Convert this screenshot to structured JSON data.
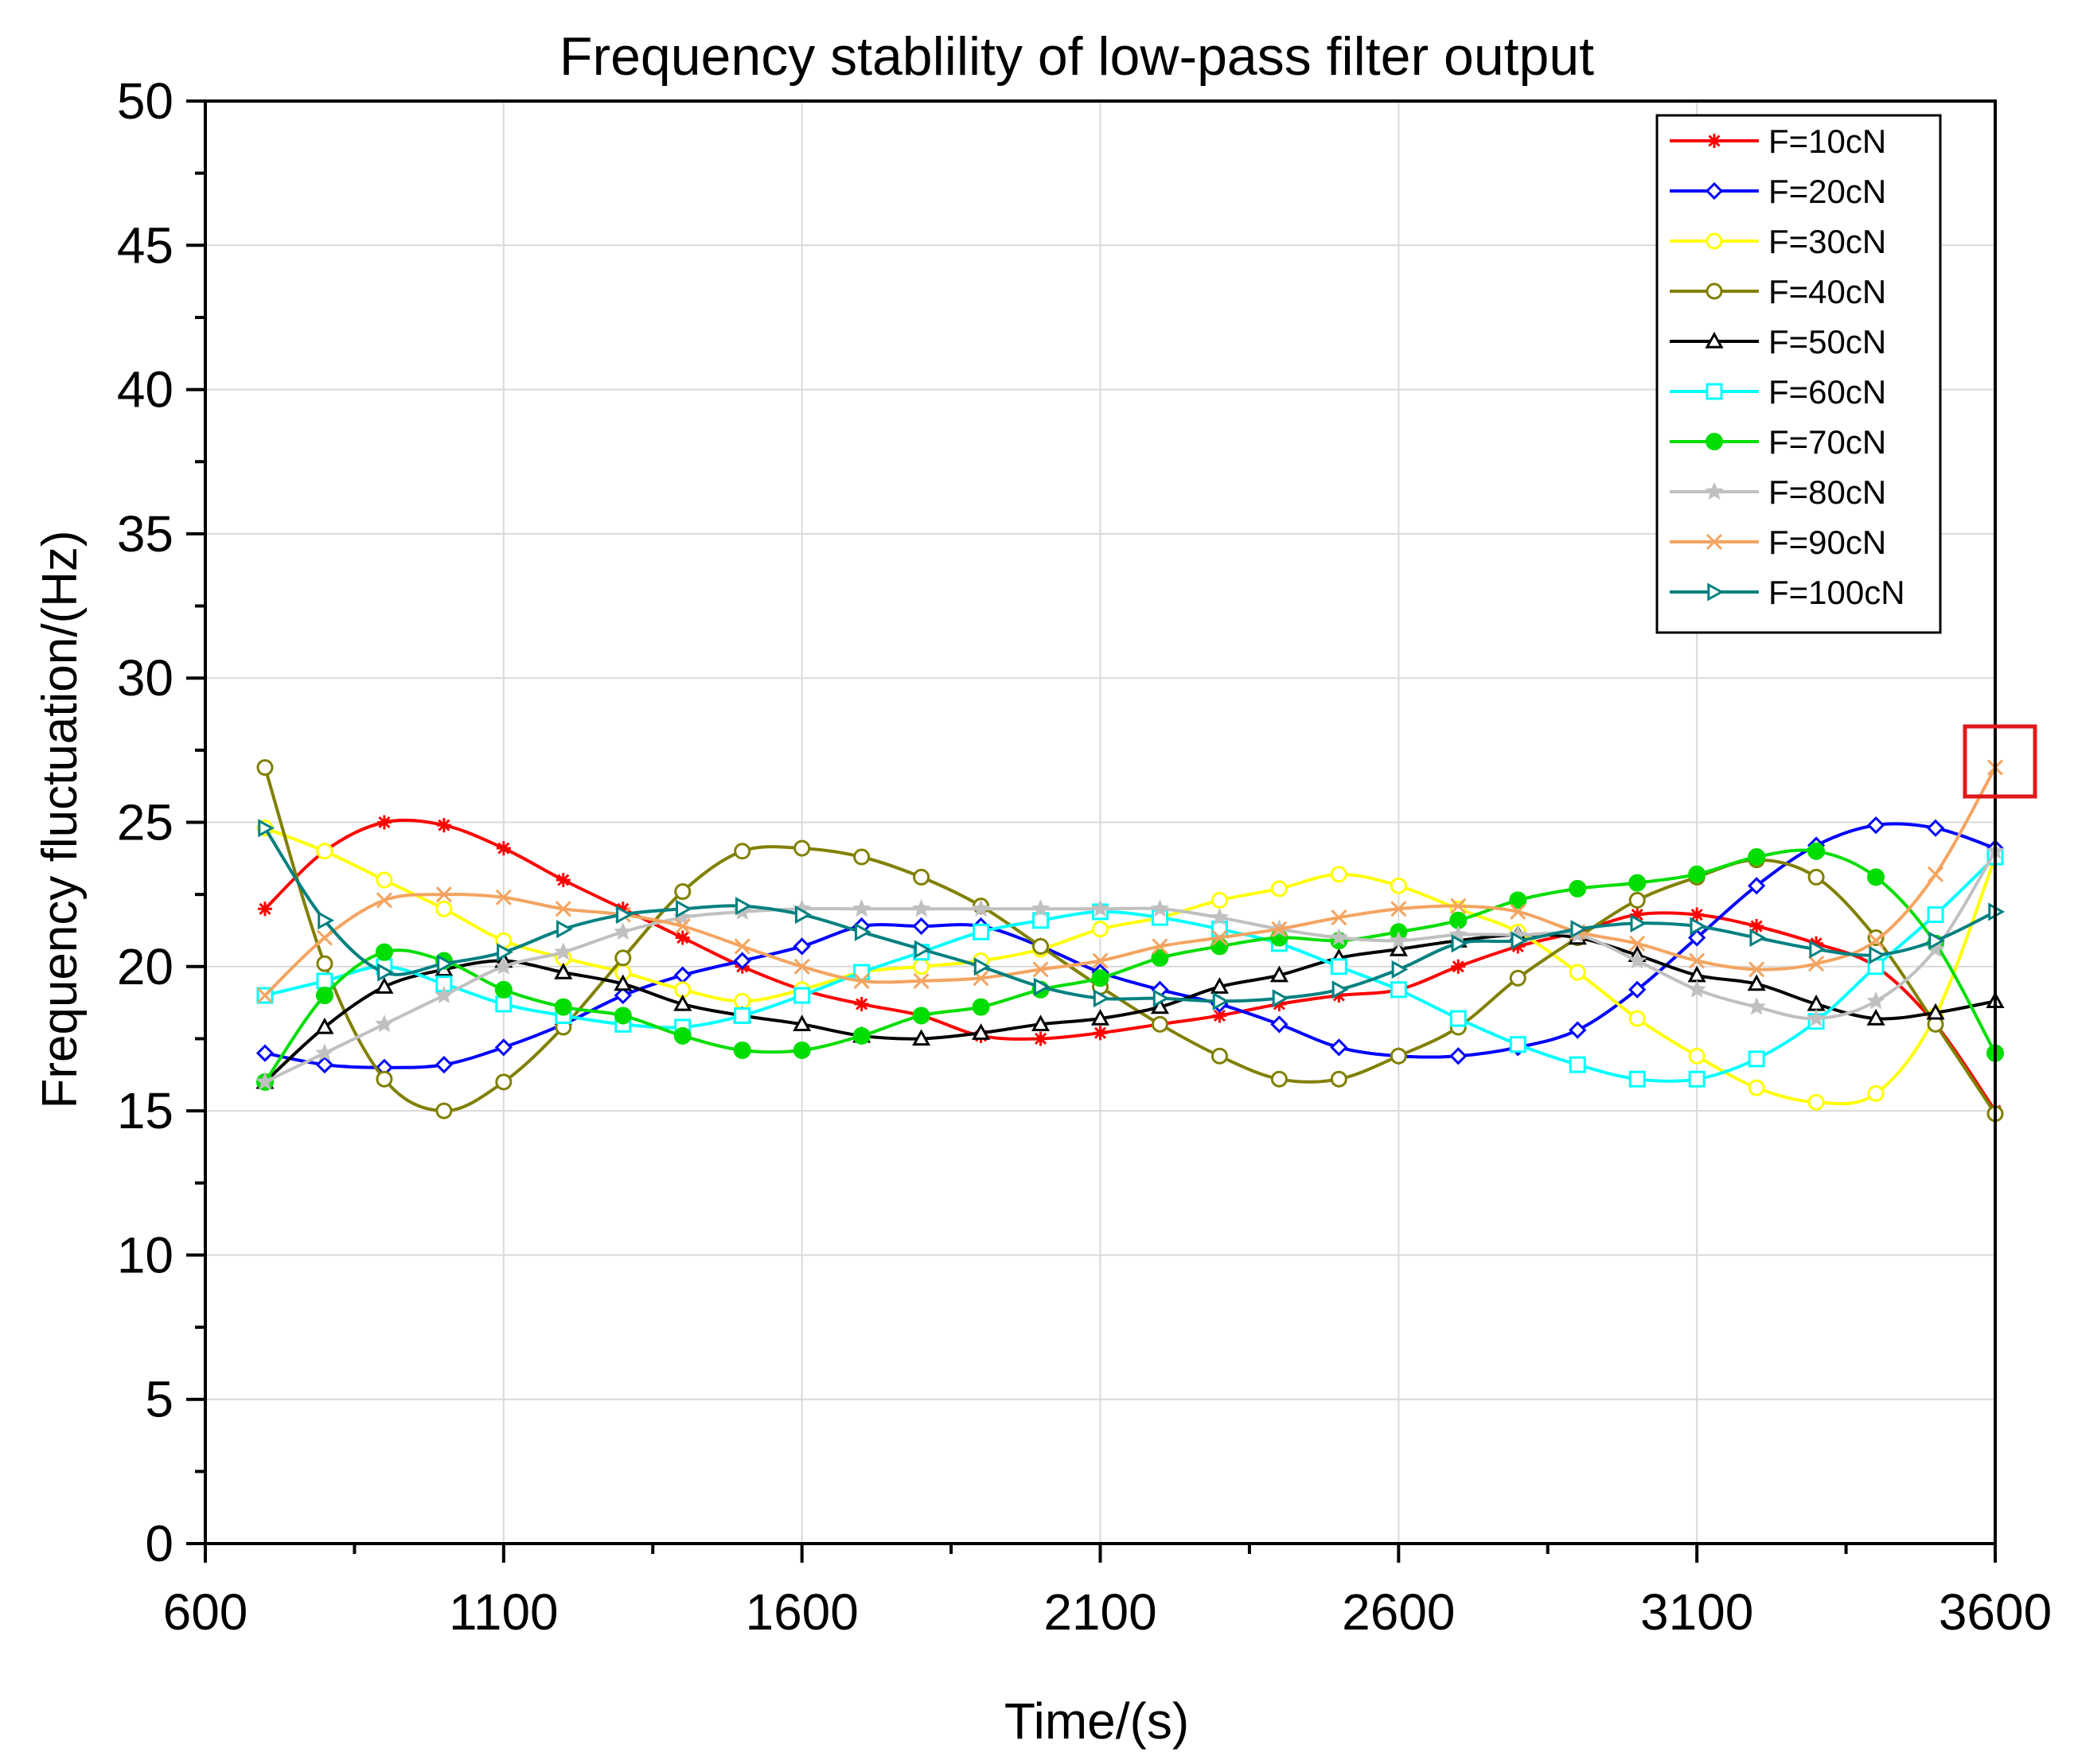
{
  "chart_data": {
    "type": "line",
    "title": "Frequency stablility of low-pass filter output",
    "xlabel": "Time/(s)",
    "ylabel": "Frequency fluctuation/(Hz)",
    "xlim": [
      600,
      3600
    ],
    "ylim": [
      0,
      50
    ],
    "xticks": [
      600,
      1100,
      1600,
      2100,
      2600,
      3100,
      3600
    ],
    "yticks": [
      0,
      5,
      10,
      15,
      20,
      25,
      30,
      35,
      40,
      45,
      50
    ],
    "grid": true,
    "legend_position": "top-right",
    "highlight_box": {
      "x": 3600,
      "y": 27
    },
    "x": [
      700,
      800,
      900,
      1000,
      1100,
      1200,
      1300,
      1400,
      1500,
      1600,
      1700,
      1800,
      1900,
      2000,
      2100,
      2200,
      2300,
      2400,
      2500,
      2600,
      2700,
      2800,
      2900,
      3000,
      3100,
      3200,
      3300,
      3400,
      3500,
      3600
    ],
    "series": [
      {
        "name": "F=10cN",
        "color": "#ff0000",
        "marker": "asterisk",
        "values": [
          22.0,
          24.0,
          25.0,
          24.9,
          24.1,
          23.0,
          22.0,
          21.0,
          20.0,
          19.2,
          18.7,
          18.3,
          17.6,
          17.5,
          17.7,
          18.0,
          18.3,
          18.7,
          19.0,
          19.2,
          20.0,
          20.7,
          21.2,
          21.8,
          21.8,
          21.4,
          20.8,
          20.0,
          18.0,
          15.0
        ]
      },
      {
        "name": "F=20cN",
        "color": "#0000ff",
        "marker": "diamond",
        "values": [
          17.0,
          16.6,
          16.5,
          16.6,
          17.2,
          18.0,
          19.0,
          19.7,
          20.2,
          20.7,
          21.4,
          21.4,
          21.4,
          20.7,
          19.8,
          19.2,
          18.7,
          18.0,
          17.2,
          16.9,
          16.9,
          17.2,
          17.8,
          19.2,
          21.0,
          22.8,
          24.2,
          24.9,
          24.8,
          24.1
        ]
      },
      {
        "name": "F=30cN",
        "color": "#ffff00",
        "marker": "circle",
        "values": [
          24.8,
          24.0,
          23.0,
          22.0,
          20.9,
          20.3,
          19.8,
          19.2,
          18.8,
          19.2,
          19.8,
          20.0,
          20.2,
          20.6,
          21.3,
          21.7,
          22.3,
          22.7,
          23.2,
          22.8,
          22.0,
          21.2,
          19.8,
          18.2,
          16.9,
          15.8,
          15.3,
          15.6,
          18.3,
          23.8
        ]
      },
      {
        "name": "F=40cN",
        "color": "#808000",
        "marker": "circle",
        "values": [
          26.9,
          20.1,
          16.1,
          15.0,
          16.0,
          17.9,
          20.3,
          22.6,
          24.0,
          24.1,
          23.8,
          23.1,
          22.1,
          20.7,
          19.3,
          18.0,
          16.9,
          16.1,
          16.1,
          16.9,
          17.9,
          19.6,
          21.0,
          22.3,
          23.1,
          23.7,
          23.1,
          21.0,
          18.0,
          14.9
        ]
      },
      {
        "name": "F=50cN",
        "color": "#000000",
        "marker": "triangle",
        "values": [
          16.0,
          17.9,
          19.3,
          19.9,
          20.2,
          19.8,
          19.4,
          18.7,
          18.3,
          18.0,
          17.6,
          17.5,
          17.7,
          18.0,
          18.2,
          18.6,
          19.3,
          19.7,
          20.3,
          20.6,
          20.9,
          21.1,
          21.0,
          20.4,
          19.7,
          19.4,
          18.7,
          18.2,
          18.4,
          18.8
        ]
      },
      {
        "name": "F=60cN",
        "color": "#00ffff",
        "marker": "square",
        "values": [
          19.0,
          19.5,
          20.0,
          19.4,
          18.7,
          18.3,
          18.0,
          17.9,
          18.3,
          19.0,
          19.8,
          20.5,
          21.2,
          21.6,
          21.9,
          21.7,
          21.3,
          20.8,
          20.0,
          19.2,
          18.2,
          17.3,
          16.6,
          16.1,
          16.1,
          16.8,
          18.1,
          20.0,
          21.8,
          23.8
        ]
      },
      {
        "name": "F=70cN",
        "color": "#00dd00",
        "marker": "dot",
        "values": [
          16.0,
          19.0,
          20.5,
          20.2,
          19.2,
          18.6,
          18.3,
          17.6,
          17.1,
          17.1,
          17.6,
          18.3,
          18.6,
          19.2,
          19.6,
          20.3,
          20.7,
          21.0,
          20.9,
          21.2,
          21.6,
          22.3,
          22.7,
          22.9,
          23.2,
          23.8,
          24.0,
          23.1,
          20.8,
          17.0
        ]
      },
      {
        "name": "F=80cN",
        "color": "#c0c0c0",
        "marker": "star",
        "values": [
          16.0,
          17.0,
          18.0,
          19.0,
          20.0,
          20.5,
          21.2,
          21.7,
          21.9,
          22.0,
          22.0,
          22.0,
          22.0,
          22.0,
          22.0,
          22.0,
          21.7,
          21.3,
          21.0,
          20.9,
          21.1,
          21.1,
          21.1,
          20.2,
          19.2,
          18.6,
          18.2,
          18.8,
          20.6,
          24.0
        ]
      },
      {
        "name": "F=90cN",
        "color": "#f4a460",
        "marker": "x",
        "values": [
          19.0,
          21.0,
          22.3,
          22.5,
          22.4,
          22.0,
          21.8,
          21.4,
          20.7,
          20.0,
          19.5,
          19.5,
          19.6,
          19.9,
          20.2,
          20.7,
          21.0,
          21.3,
          21.7,
          22.0,
          22.1,
          21.9,
          21.2,
          20.8,
          20.2,
          19.9,
          20.1,
          20.9,
          23.2,
          26.9
        ]
      },
      {
        "name": "F=100cN",
        "color": "#008080",
        "marker": "triangle-right",
        "values": [
          24.8,
          21.6,
          19.8,
          20.1,
          20.5,
          21.3,
          21.8,
          22.0,
          22.1,
          21.8,
          21.2,
          20.6,
          20.0,
          19.3,
          18.9,
          18.9,
          18.8,
          18.9,
          19.2,
          19.9,
          20.8,
          20.9,
          21.3,
          21.5,
          21.4,
          21.0,
          20.6,
          20.4,
          20.9,
          21.9
        ]
      }
    ]
  }
}
